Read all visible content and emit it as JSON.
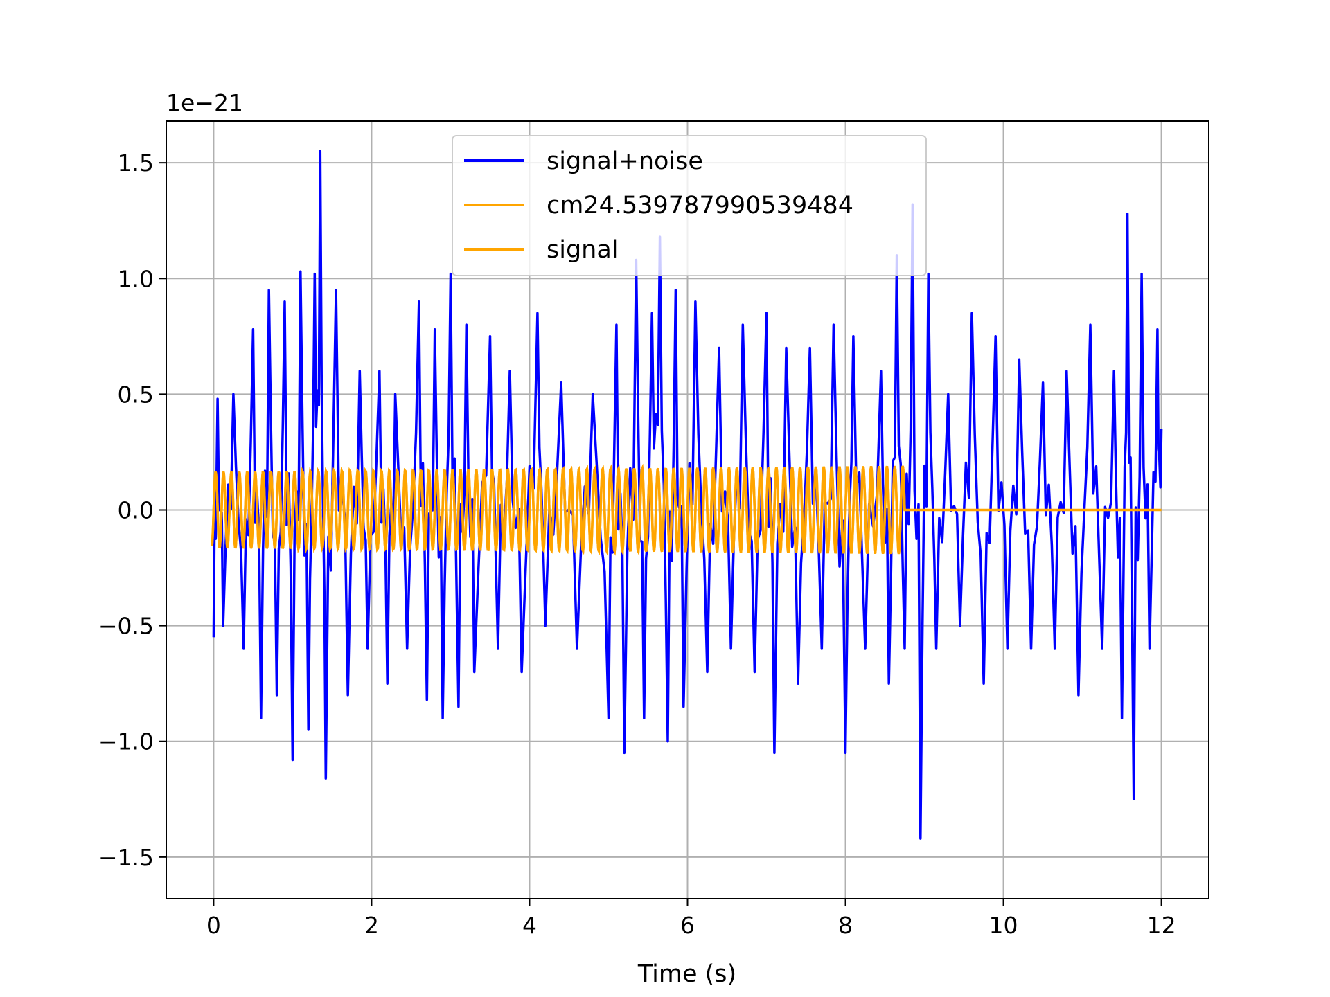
{
  "chart_data": {
    "type": "line",
    "title": "",
    "xlabel": "Time (s)",
    "ylabel": "",
    "offset_text": "1e−21",
    "xlim": [
      -0.6,
      12.6
    ],
    "ylim": [
      -1.68,
      1.68
    ],
    "xticks": [
      0,
      2,
      4,
      6,
      8,
      10,
      12
    ],
    "xtick_labels": [
      "0",
      "2",
      "4",
      "6",
      "8",
      "10",
      "12"
    ],
    "yticks": [
      -1.5,
      -1.0,
      -0.5,
      0.0,
      0.5,
      1.0,
      1.5
    ],
    "ytick_labels": [
      "−1.5",
      "−1.0",
      "−0.5",
      "0.0",
      "0.5",
      "1.0",
      "1.5"
    ],
    "grid": true,
    "legend_position": "top-center",
    "series": [
      {
        "name": "signal+noise",
        "color": "#0000ff",
        "t_range": [
          0,
          12
        ],
        "peaks": [
          [
            0.0,
            -0.55
          ],
          [
            0.05,
            0.48
          ],
          [
            0.12,
            -0.5
          ],
          [
            0.25,
            0.5
          ],
          [
            0.38,
            -0.6
          ],
          [
            0.5,
            0.78
          ],
          [
            0.6,
            -0.9
          ],
          [
            0.7,
            0.95
          ],
          [
            0.8,
            -0.8
          ],
          [
            0.9,
            0.9
          ],
          [
            1.0,
            -1.08
          ],
          [
            1.1,
            1.03
          ],
          [
            1.2,
            -0.95
          ],
          [
            1.28,
            1.02
          ],
          [
            1.35,
            1.55
          ],
          [
            1.42,
            -1.16
          ],
          [
            1.55,
            0.95
          ],
          [
            1.7,
            -0.8
          ],
          [
            1.85,
            0.6
          ],
          [
            1.95,
            -0.6
          ],
          [
            2.1,
            0.6
          ],
          [
            2.2,
            -0.75
          ],
          [
            2.3,
            0.5
          ],
          [
            2.45,
            -0.6
          ],
          [
            2.6,
            0.9
          ],
          [
            2.7,
            -0.82
          ],
          [
            2.8,
            0.78
          ],
          [
            2.9,
            -0.9
          ],
          [
            3.0,
            1.02
          ],
          [
            3.1,
            -0.85
          ],
          [
            3.2,
            0.8
          ],
          [
            3.3,
            -0.7
          ],
          [
            3.5,
            0.75
          ],
          [
            3.6,
            -0.6
          ],
          [
            3.75,
            0.6
          ],
          [
            3.9,
            -0.7
          ],
          [
            4.1,
            0.85
          ],
          [
            4.2,
            -0.5
          ],
          [
            4.4,
            0.55
          ],
          [
            4.6,
            -0.6
          ],
          [
            4.8,
            0.5
          ],
          [
            5.0,
            -0.9
          ],
          [
            5.1,
            0.8
          ],
          [
            5.2,
            -1.05
          ],
          [
            5.35,
            1.08
          ],
          [
            5.45,
            -0.9
          ],
          [
            5.55,
            0.85
          ],
          [
            5.65,
            1.18
          ],
          [
            5.75,
            -1.0
          ],
          [
            5.85,
            0.95
          ],
          [
            5.95,
            -0.85
          ],
          [
            6.1,
            0.9
          ],
          [
            6.25,
            -0.7
          ],
          [
            6.4,
            0.7
          ],
          [
            6.55,
            -0.6
          ],
          [
            6.7,
            0.8
          ],
          [
            6.85,
            -0.7
          ],
          [
            7.0,
            0.85
          ],
          [
            7.1,
            -1.05
          ],
          [
            7.25,
            0.7
          ],
          [
            7.4,
            -0.75
          ],
          [
            7.55,
            0.7
          ],
          [
            7.7,
            -0.6
          ],
          [
            7.85,
            0.8
          ],
          [
            8.0,
            -1.05
          ],
          [
            8.1,
            0.75
          ],
          [
            8.25,
            -0.6
          ],
          [
            8.45,
            0.6
          ],
          [
            8.55,
            -0.75
          ],
          [
            8.65,
            1.1
          ],
          [
            8.75,
            -0.6
          ],
          [
            8.85,
            1.32
          ],
          [
            8.95,
            -1.42
          ],
          [
            9.05,
            1.02
          ],
          [
            9.15,
            -0.6
          ],
          [
            9.3,
            0.5
          ],
          [
            9.45,
            -0.5
          ],
          [
            9.6,
            0.85
          ],
          [
            9.75,
            -0.75
          ],
          [
            9.9,
            0.75
          ],
          [
            10.05,
            -0.6
          ],
          [
            10.2,
            0.65
          ],
          [
            10.35,
            -0.6
          ],
          [
            10.5,
            0.55
          ],
          [
            10.65,
            -0.6
          ],
          [
            10.8,
            0.6
          ],
          [
            10.95,
            -0.8
          ],
          [
            11.1,
            0.8
          ],
          [
            11.25,
            -0.6
          ],
          [
            11.4,
            0.6
          ],
          [
            11.5,
            -0.9
          ],
          [
            11.57,
            1.28
          ],
          [
            11.65,
            -1.25
          ],
          [
            11.75,
            1.02
          ],
          [
            11.85,
            -0.6
          ],
          [
            11.95,
            0.78
          ],
          [
            12.0,
            0.35
          ]
        ]
      },
      {
        "name": "cm24.539787990539484",
        "color": "#ffa500",
        "t_range": [
          -0.02,
          8.75
        ],
        "amplitude": 0.165,
        "amplitude_end": 0.19,
        "frequency_hz": 10.0
      },
      {
        "name": "signal",
        "color": "#ffa500",
        "t_range": [
          -0.02,
          12.0
        ],
        "amplitude": 0.165,
        "amplitude_end": 0.19,
        "active_until": 8.75,
        "frequency_hz": 10.0
      }
    ]
  }
}
